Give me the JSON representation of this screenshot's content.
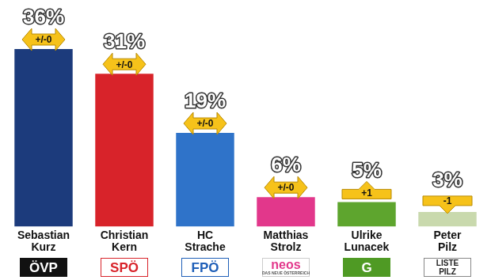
{
  "chart_data": {
    "type": "bar",
    "categories": [
      "Sebastian Kurz",
      "Christian Kern",
      "HC Strache",
      "Matthias Strolz",
      "Ulrike Lunacek",
      "Peter Pilz"
    ],
    "values": [
      36,
      31,
      19,
      6,
      5,
      3
    ],
    "value_labels": [
      "36%",
      "31%",
      "19%",
      "6%",
      "5%",
      "3%"
    ],
    "data_labels": true,
    "changes": [
      0,
      0,
      0,
      0,
      1,
      -1
    ],
    "change_labels": [
      "+/-0",
      "+/-0",
      "+/-0",
      "+/-0",
      "+1",
      "-1"
    ],
    "parties": [
      "ÖVP",
      "SPÖ",
      "FPÖ",
      "neos",
      "G",
      "LISTE PILZ"
    ],
    "party_taglines": [
      null,
      null,
      null,
      "DAS NEUE ÖSTERREICH",
      null,
      null
    ],
    "colors": [
      "#1c3b7c",
      "#d8232a",
      "#2f73c9",
      "#e2378b",
      "#5ea52e",
      "#c9d9ad"
    ],
    "ylim": [
      0,
      36
    ],
    "grid": false,
    "tick_labels": "x"
  }
}
